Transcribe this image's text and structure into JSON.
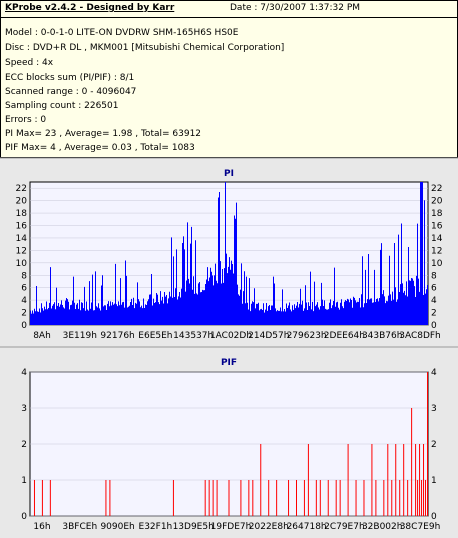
{
  "info": {
    "app_title": "KProbe v2.4.2 - Designed by Karr",
    "date": "Date : 7/30/2007 1:37:32 PM",
    "lines": [
      "Model : 0-0-1-0 LITE-ON DVDRW SHM-165H6S HS0E",
      "Disc : DVD+R DL , MKM001 [Mitsubishi Chemical Corporation]",
      "Speed : 4x",
      "ECC blocks sum (PI/PIF) : 8/1",
      "Scanned range : 0 - 4096047",
      "Sampling count : 226501",
      "Errors : 0",
      "PI Max= 23 , Average= 1.98 , Total= 63912",
      "PIF Max= 4 , Average= 0.03 , Total= 1083"
    ]
  },
  "chart_data": [
    {
      "type": "bar",
      "title": "PI",
      "color": "#0000ff",
      "ylim": [
        0,
        23
      ],
      "yticks": [
        0,
        2,
        4,
        6,
        8,
        10,
        12,
        14,
        16,
        18,
        20,
        22
      ],
      "xtick_labels": [
        "8Ah",
        "3E119h",
        "92176h",
        "E6E5Eh",
        "143537h",
        "1AC02Dh",
        "214D57h",
        "279623h",
        "2DEE64h",
        "343B76h",
        "3AC8DFh"
      ],
      "profile": {
        "note": "approximate PI level across the scan (fraction 0..1 -> value)",
        "points": [
          [
            0.0,
            3
          ],
          [
            0.05,
            4
          ],
          [
            0.1,
            4.5
          ],
          [
            0.15,
            4
          ],
          [
            0.2,
            4
          ],
          [
            0.25,
            4.5
          ],
          [
            0.3,
            5
          ],
          [
            0.35,
            6
          ],
          [
            0.4,
            7.5
          ],
          [
            0.45,
            10
          ],
          [
            0.5,
            13
          ],
          [
            0.52,
            8
          ],
          [
            0.55,
            4
          ],
          [
            0.6,
            3.5
          ],
          [
            0.7,
            4
          ],
          [
            0.8,
            4.5
          ],
          [
            0.9,
            6
          ],
          [
            1.0,
            9
          ]
        ]
      },
      "peak": 23
    },
    {
      "type": "bar",
      "title": "PIF",
      "color": "#ff0000",
      "ylim": [
        0,
        4
      ],
      "yticks": [
        0,
        1,
        2,
        3,
        4
      ],
      "xtick_labels": [
        "16h",
        "3BFCEh",
        "9090Eh",
        "E32F1h",
        "13D9E5h",
        "19FDE7h",
        "2022E8h",
        "264718h",
        "2C79E7h",
        "32B002h",
        "38C7E9h"
      ],
      "spikes": [
        [
          0.01,
          1
        ],
        [
          0.03,
          1
        ],
        [
          0.05,
          1
        ],
        [
          0.19,
          1
        ],
        [
          0.2,
          1
        ],
        [
          0.36,
          1
        ],
        [
          0.44,
          1
        ],
        [
          0.45,
          1
        ],
        [
          0.46,
          1
        ],
        [
          0.47,
          1
        ],
        [
          0.5,
          1
        ],
        [
          0.53,
          1
        ],
        [
          0.55,
          1
        ],
        [
          0.56,
          1
        ],
        [
          0.58,
          2
        ],
        [
          0.6,
          1
        ],
        [
          0.62,
          1
        ],
        [
          0.65,
          1
        ],
        [
          0.67,
          1
        ],
        [
          0.69,
          1
        ],
        [
          0.7,
          2
        ],
        [
          0.72,
          1
        ],
        [
          0.73,
          1
        ],
        [
          0.75,
          1
        ],
        [
          0.77,
          1
        ],
        [
          0.78,
          1
        ],
        [
          0.8,
          2
        ],
        [
          0.82,
          1
        ],
        [
          0.84,
          1
        ],
        [
          0.86,
          2
        ],
        [
          0.87,
          1
        ],
        [
          0.89,
          1
        ],
        [
          0.9,
          2
        ],
        [
          0.91,
          1
        ],
        [
          0.92,
          2
        ],
        [
          0.93,
          1
        ],
        [
          0.94,
          2
        ],
        [
          0.95,
          1
        ],
        [
          0.96,
          3
        ],
        [
          0.97,
          2
        ],
        [
          0.975,
          1
        ],
        [
          0.98,
          2
        ],
        [
          0.985,
          1
        ],
        [
          0.99,
          2
        ],
        [
          0.995,
          1
        ],
        [
          1.0,
          4
        ]
      ]
    }
  ]
}
